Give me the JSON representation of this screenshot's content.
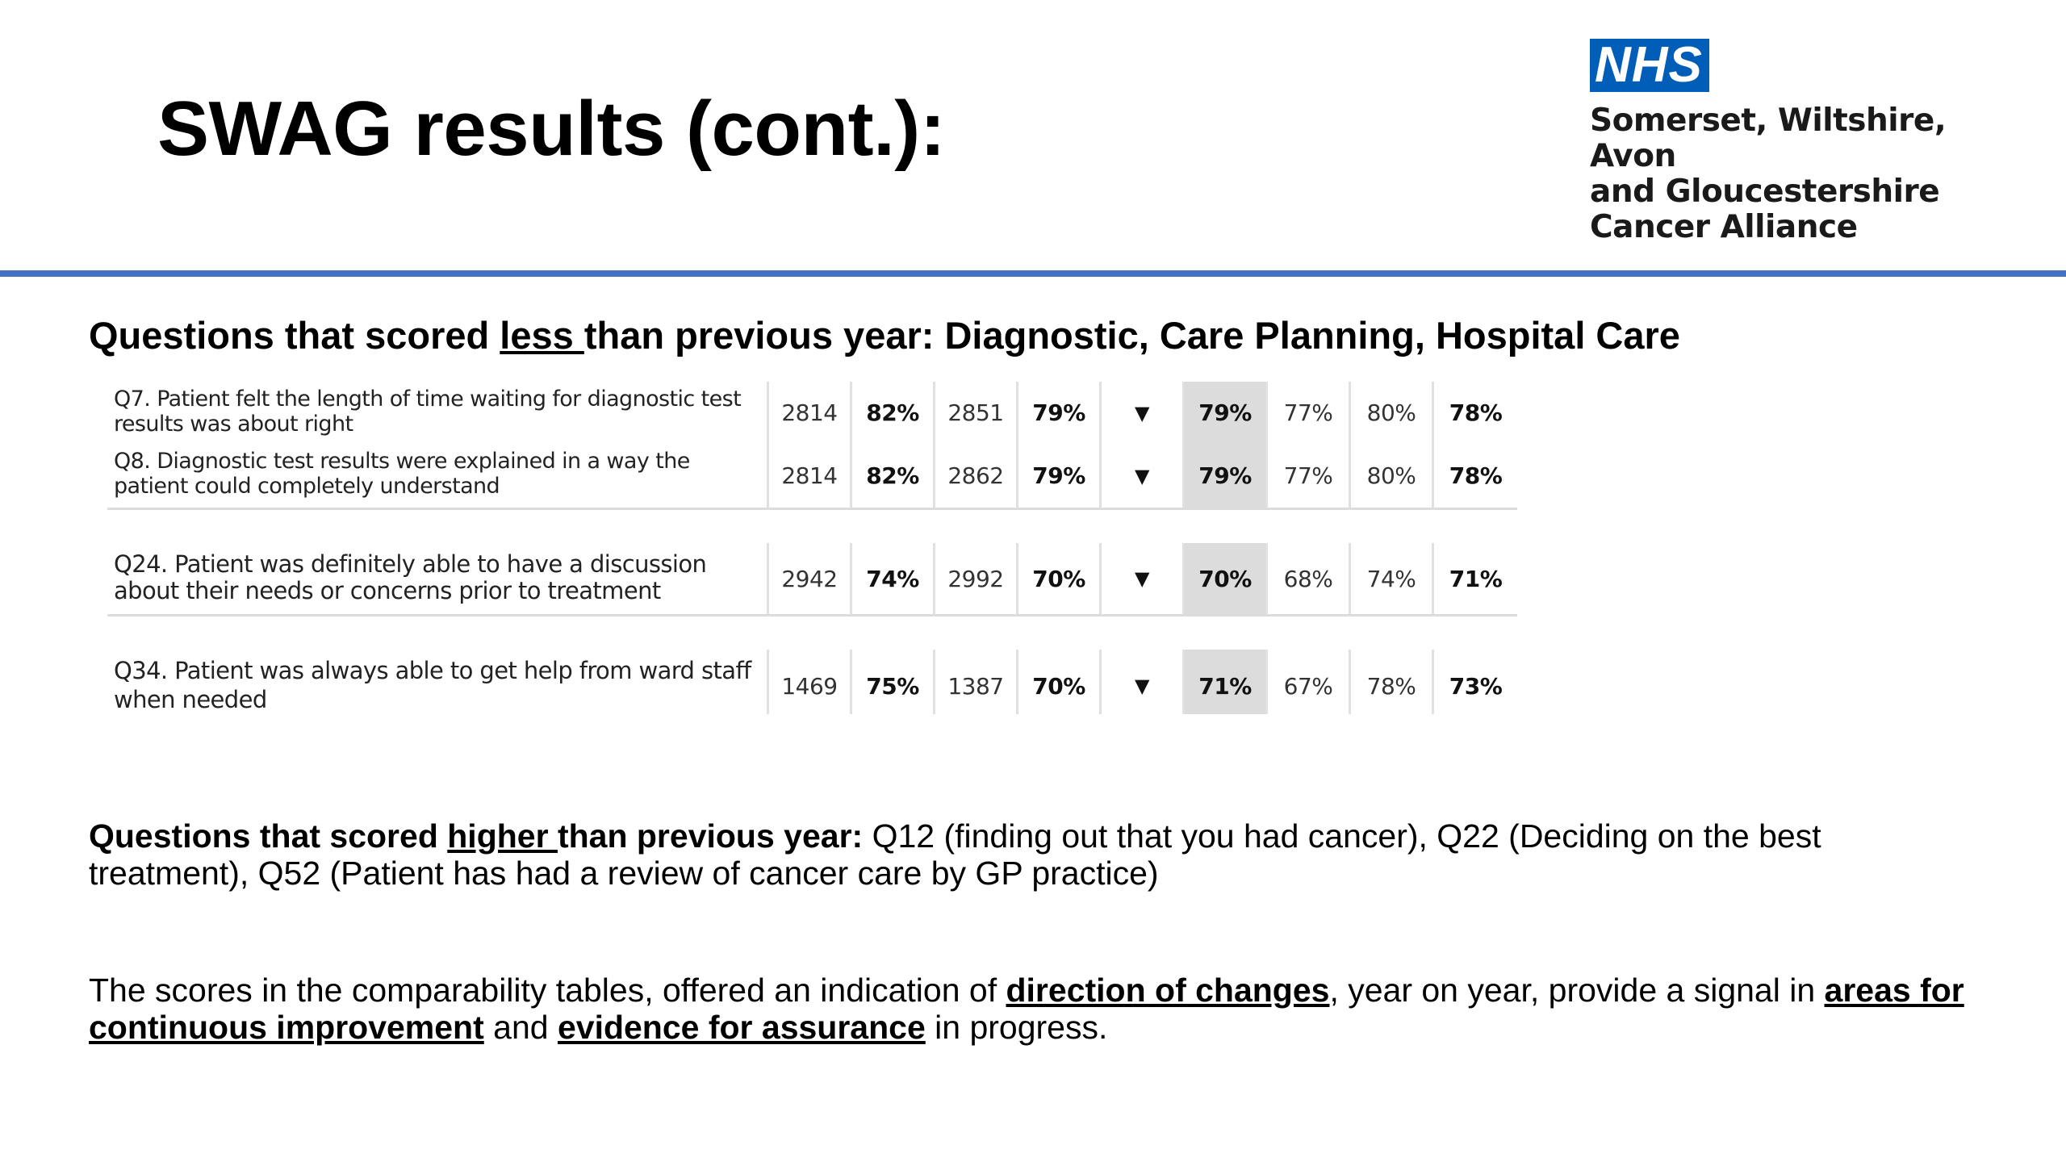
{
  "slide": {
    "title": "SWAG results (cont.):",
    "logo": {
      "badge": "NHS",
      "lines": [
        "Somerset, Wiltshire, Avon",
        "and Gloucestershire",
        "Cancer Alliance"
      ]
    },
    "less_heading": {
      "pre": "Questions that scored ",
      "emph": "less ",
      "post": "than previous year: Diagnostic, Care Planning, Hospital Care"
    },
    "table": {
      "rows": [
        {
          "question": "Q7. Patient felt the length of time waiting for diagnostic test results was about right",
          "n1": "2814",
          "p1": "82%",
          "n2": "2851",
          "p2": "79%",
          "arrow": "▼",
          "p3": "79%",
          "p4": "77%",
          "p5": "80%",
          "p6": "78%"
        },
        {
          "question": "Q8. Diagnostic test results were explained in a way the patient could completely understand",
          "n1": "2814",
          "p1": "82%",
          "n2": "2862",
          "p2": "79%",
          "arrow": "▼",
          "p3": "79%",
          "p4": "77%",
          "p5": "80%",
          "p6": "78%"
        },
        {
          "question": "Q24. Patient was definitely able to have a discussion about their needs or concerns prior to treatment",
          "n1": "2942",
          "p1": "74%",
          "n2": "2992",
          "p2": "70%",
          "arrow": "▼",
          "p3": "70%",
          "p4": "68%",
          "p5": "74%",
          "p6": "71%"
        },
        {
          "question": "Q34. Patient was always able to get help from ward staff when needed",
          "n1": "1469",
          "p1": "75%",
          "n2": "1387",
          "p2": "70%",
          "arrow": "▼",
          "p3": "71%",
          "p4": "67%",
          "p5": "78%",
          "p6": "73%"
        }
      ]
    },
    "higher": {
      "pre": "Questions that scored ",
      "emph": "higher ",
      "mid": "than previous year:",
      "text": " Q12 (finding out that you had cancer), Q22 (Deciding on the best treatment), Q52 (Patient has had a review of cancer care by GP practice)"
    },
    "scores": {
      "t1": "The scores in the comparability tables, offered an indication of ",
      "e1": "direction of changes",
      "t2": ", year on year, provide a signal in ",
      "e2": "areas for continuous improvement",
      "t3": " and ",
      "e3": "evidence for assurance",
      "t4": " in progress."
    }
  }
}
